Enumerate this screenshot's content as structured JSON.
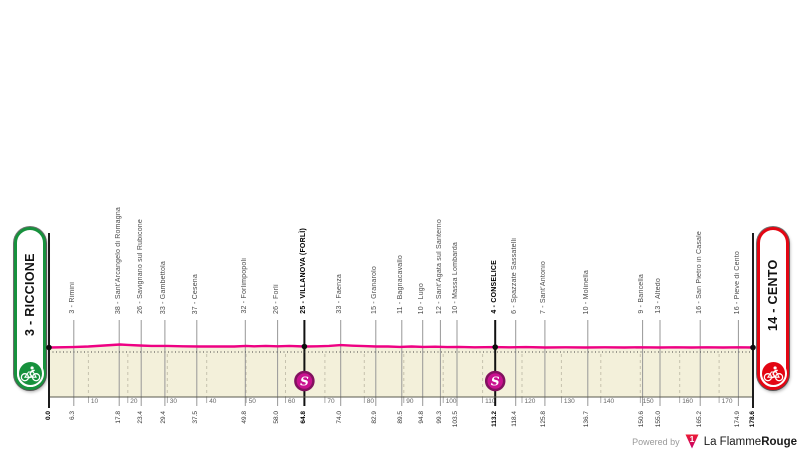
{
  "route": {
    "start_label": "3 - RICCIONE",
    "finish_label": "14 - CENTO"
  },
  "footer": {
    "powered_by": "Powered by",
    "brand_prefix": "La Flamme",
    "brand_suffix": "Rouge",
    "logo_digit": "1"
  },
  "colors": {
    "profile_line": "#ee0083",
    "area_fill": "#f3f0da",
    "area_edge": "#5a5a4f",
    "grid_gray": "#979797",
    "grid_black": "#111111",
    "start_green": "#17913d",
    "finish_red": "#e30613",
    "sprint_fill": "#c9118f",
    "sprint_ring": "#82115f"
  },
  "chart_data": {
    "type": "area",
    "total_km": 178.6,
    "x_axis_ticks": [
      10,
      20,
      30,
      40,
      50,
      60,
      70,
      80,
      90,
      100,
      110,
      120,
      130,
      140,
      150,
      160,
      170
    ],
    "points": [
      {
        "km": 0.0,
        "km_label": "0.0",
        "type": "start",
        "bold": true
      },
      {
        "km": 6.3,
        "km_label": "6.3",
        "name": "3 - Rimini"
      },
      {
        "km": 17.8,
        "km_label": "17.8",
        "name": "38 - Sant’Arcangelo di Romagna"
      },
      {
        "km": 23.4,
        "km_label": "23.4",
        "name": "26 - Savignano sul Rubicone"
      },
      {
        "km": 29.4,
        "km_label": "29.4",
        "name": "33 - Gambettola"
      },
      {
        "km": 37.5,
        "km_label": "37.5",
        "name": "37 - Cesena"
      },
      {
        "km": 49.8,
        "km_label": "49.8",
        "name": "32 - Forlimpopoli"
      },
      {
        "km": 58.0,
        "km_label": "58.0",
        "name": "26 - Forlì"
      },
      {
        "km": 64.8,
        "km_label": "64.8",
        "name": "25 - VILLANOVA (FORLÌ)",
        "bold": true,
        "sprint": true
      },
      {
        "km": 74.0,
        "km_label": "74.0",
        "name": "33 - Faenza"
      },
      {
        "km": 82.9,
        "km_label": "82.9",
        "name": "15 - Granarolo"
      },
      {
        "km": 89.5,
        "km_label": "89.5",
        "name": "11 - Bagnacavallo"
      },
      {
        "km": 94.8,
        "km_label": "94.8",
        "name": "10 - Lugo"
      },
      {
        "km": 99.3,
        "km_label": "99.3",
        "name": "12 - Sant’Agata sul Santerno"
      },
      {
        "km": 103.5,
        "km_label": "103.5",
        "name": "10 - Massa Lombarda"
      },
      {
        "km": 113.2,
        "km_label": "113.2",
        "name": "4 - CONSELICE",
        "bold": true,
        "sprint": true
      },
      {
        "km": 118.4,
        "km_label": "118.4",
        "name": "6 - Spazzate Sassatelli"
      },
      {
        "km": 125.8,
        "km_label": "125.8",
        "name": "7 - Sant’Antonio"
      },
      {
        "km": 136.7,
        "km_label": "136.7",
        "name": "10 - Molinella"
      },
      {
        "km": 150.6,
        "km_label": "150.6",
        "name": "9 - Baricella"
      },
      {
        "km": 155.0,
        "km_label": "155.0",
        "name": "13 - Altedo"
      },
      {
        "km": 165.2,
        "km_label": "165.2",
        "name": "16 - San Pietro in Casale"
      },
      {
        "km": 174.9,
        "km_label": "174.9",
        "name": "16 - Pieve di Cento"
      },
      {
        "km": 178.6,
        "km_label": "178.6",
        "type": "finish",
        "bold": true
      }
    ],
    "sprint_symbol": "S",
    "profile_elevation_m": [
      [
        0,
        20
      ],
      [
        6,
        22
      ],
      [
        10,
        25
      ],
      [
        14,
        30
      ],
      [
        18,
        35
      ],
      [
        20,
        33
      ],
      [
        23,
        30
      ],
      [
        26,
        28
      ],
      [
        30,
        28
      ],
      [
        34,
        26
      ],
      [
        38,
        25
      ],
      [
        43,
        25
      ],
      [
        47,
        25
      ],
      [
        50,
        28
      ],
      [
        52,
        26
      ],
      [
        55,
        28
      ],
      [
        58,
        26
      ],
      [
        61,
        28
      ],
      [
        65,
        25
      ],
      [
        68,
        26
      ],
      [
        71,
        28
      ],
      [
        74,
        32
      ],
      [
        77,
        29
      ],
      [
        80,
        27
      ],
      [
        83,
        25
      ],
      [
        86,
        25
      ],
      [
        89,
        23
      ],
      [
        92,
        25
      ],
      [
        95,
        23
      ],
      [
        98,
        24
      ],
      [
        101,
        22
      ],
      [
        104,
        23
      ],
      [
        108,
        21
      ],
      [
        113,
        22
      ],
      [
        117,
        21
      ],
      [
        121,
        22
      ],
      [
        126,
        20
      ],
      [
        131,
        21
      ],
      [
        136,
        20
      ],
      [
        141,
        21
      ],
      [
        146,
        20
      ],
      [
        150,
        21
      ],
      [
        155,
        20
      ],
      [
        159,
        21
      ],
      [
        163,
        20
      ],
      [
        167,
        21
      ],
      [
        171,
        20
      ],
      [
        175,
        21
      ],
      [
        178.6,
        20
      ]
    ]
  }
}
